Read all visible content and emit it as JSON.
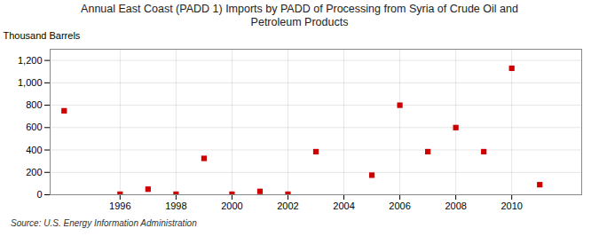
{
  "chart_data": {
    "type": "scatter",
    "title": "Annual East Coast (PADD 1) Imports by PADD of Processing from Syria of Crude Oil and\nPetroleum Products",
    "ylabel": "Thousand Barrels",
    "source": "Source: U.S. Energy Information Administration",
    "x": [
      1994,
      1996,
      1997,
      1998,
      1999,
      2000,
      2001,
      2002,
      2003,
      2005,
      2006,
      2007,
      2008,
      2009,
      2010,
      2011
    ],
    "values": [
      750,
      5,
      50,
      5,
      325,
      5,
      30,
      5,
      385,
      175,
      800,
      385,
      600,
      385,
      1130,
      90
    ],
    "color": "#cc0000",
    "marker": "square",
    "xlim": [
      1993.5,
      2012.5
    ],
    "ylim": [
      0,
      1300
    ],
    "xticks": [
      1996,
      1998,
      2000,
      2002,
      2004,
      2006,
      2008,
      2010
    ],
    "yticks": [
      0,
      200,
      400,
      600,
      800,
      {
        "value": 1000,
        "label": "1,000"
      },
      {
        "value": 1200,
        "label": "1,200"
      }
    ],
    "grid": true
  }
}
